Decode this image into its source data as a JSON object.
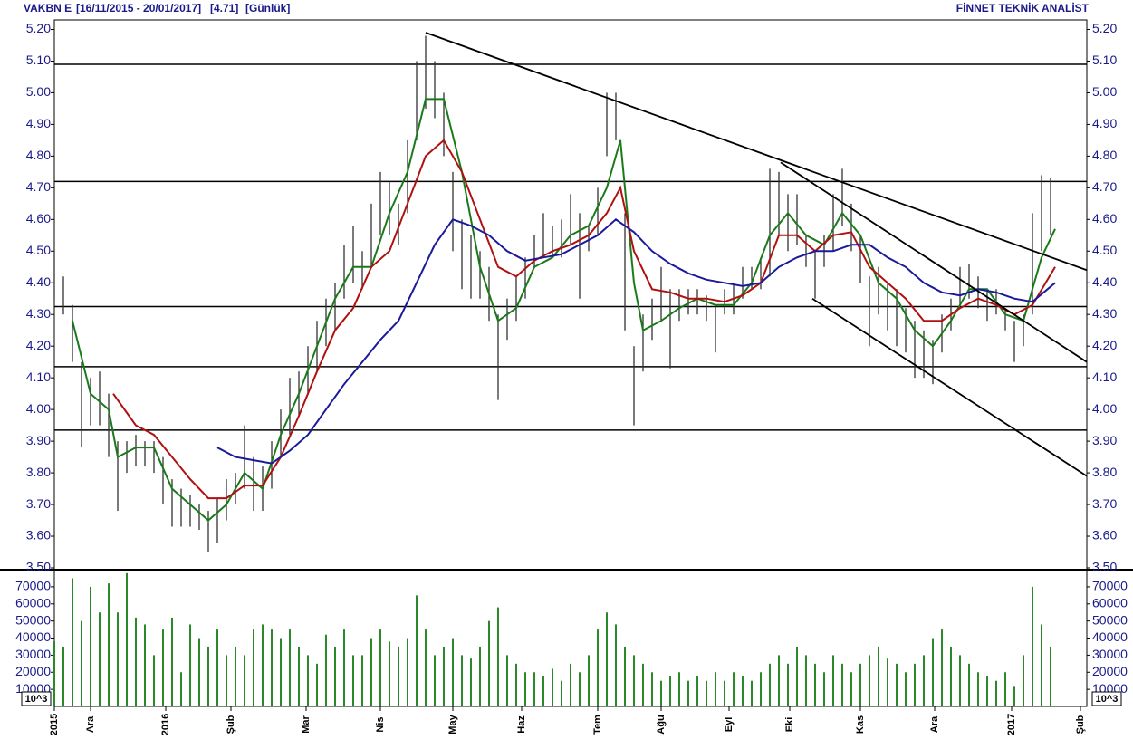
{
  "chart_data": {
    "type": "price-range",
    "title": "VAKBN E",
    "period": "[16/11/2015 - 20/01/2017]",
    "last": "[4.71]",
    "interval": "[Günlük]",
    "source": "FİNNET TEKNİK ANALİST",
    "xlim": [
      0,
      114
    ],
    "xticks": [
      {
        "value": 0,
        "label": "2015"
      },
      {
        "value": 4,
        "label": "Ara"
      },
      {
        "value": 12.3,
        "label": "2016"
      },
      {
        "value": 19.5,
        "label": "Şub"
      },
      {
        "value": 27.8,
        "label": "Mar"
      },
      {
        "value": 36,
        "label": "Nis"
      },
      {
        "value": 44,
        "label": "May"
      },
      {
        "value": 51.6,
        "label": "Haz"
      },
      {
        "value": 60,
        "label": "Tem"
      },
      {
        "value": 67,
        "label": "Ağu"
      },
      {
        "value": 74.5,
        "label": "Eyl"
      },
      {
        "value": 81.2,
        "label": "Eki"
      },
      {
        "value": 89,
        "label": "Kas"
      },
      {
        "value": 97.2,
        "label": "Ara"
      },
      {
        "value": 105.7,
        "label": "2017"
      },
      {
        "value": 113.3,
        "label": "Şub"
      }
    ],
    "ylim": [
      3.5,
      5.23
    ],
    "yticks": [
      {
        "value": 3.5,
        "label": "3.50"
      },
      {
        "value": 3.6,
        "label": "3.60"
      },
      {
        "value": 3.7,
        "label": "3.70"
      },
      {
        "value": 3.8,
        "label": "3.80"
      },
      {
        "value": 3.9,
        "label": "3.90"
      },
      {
        "value": 4.0,
        "label": "4.00"
      },
      {
        "value": 4.1,
        "label": "4.10"
      },
      {
        "value": 4.2,
        "label": "4.20"
      },
      {
        "value": 4.3,
        "label": "4.30"
      },
      {
        "value": 4.4,
        "label": "4.40"
      },
      {
        "value": 4.5,
        "label": "4.50"
      },
      {
        "value": 4.6,
        "label": "4.60"
      },
      {
        "value": 4.7,
        "label": "4.70"
      },
      {
        "value": 4.8,
        "label": "4.80"
      },
      {
        "value": 4.9,
        "label": "4.90"
      },
      {
        "value": 5.0,
        "label": "5.00"
      },
      {
        "value": 5.1,
        "label": "5.10"
      },
      {
        "value": 5.2,
        "label": "5.20"
      }
    ],
    "bar_color": "#333333",
    "x": [
      0,
      1,
      2,
      3,
      4,
      5,
      6,
      7,
      8,
      9,
      10,
      11,
      12,
      13,
      14,
      15,
      16,
      17,
      18,
      19,
      20,
      21,
      22,
      23,
      24,
      25,
      26,
      27,
      28,
      29,
      30,
      31,
      32,
      33,
      34,
      35,
      36,
      37,
      38,
      39,
      40,
      41,
      42,
      43,
      44,
      45,
      46,
      47,
      48,
      49,
      50,
      51,
      52,
      53,
      54,
      55,
      56,
      57,
      58,
      59,
      60,
      61,
      62,
      63,
      64,
      65,
      66,
      67,
      68,
      69,
      70,
      71,
      72,
      73,
      74,
      75,
      76,
      77,
      78,
      79,
      80,
      81,
      82,
      83,
      84,
      85,
      86,
      87,
      88,
      89,
      90,
      91,
      92,
      93,
      94,
      95,
      96,
      97,
      98,
      99,
      100,
      101,
      102,
      103,
      104,
      105,
      106,
      107,
      108,
      109,
      110
    ],
    "high": [
      4.5,
      4.42,
      4.33,
      4.15,
      4.1,
      4.12,
      4.05,
      3.9,
      3.9,
      3.92,
      3.9,
      3.9,
      3.85,
      3.78,
      3.75,
      3.73,
      3.7,
      3.68,
      3.72,
      3.78,
      3.8,
      3.95,
      3.85,
      3.82,
      3.9,
      4.0,
      4.1,
      4.12,
      4.2,
      4.28,
      4.35,
      4.4,
      4.52,
      4.58,
      4.5,
      4.65,
      4.75,
      4.72,
      4.65,
      4.85,
      5.1,
      5.18,
      5.1,
      5.0,
      4.75,
      4.6,
      4.55,
      4.5,
      4.45,
      4.3,
      4.35,
      4.42,
      4.48,
      4.55,
      4.62,
      4.58,
      4.6,
      4.68,
      4.62,
      4.58,
      4.7,
      5.0,
      5.0,
      4.62,
      4.2,
      4.3,
      4.35,
      4.45,
      4.38,
      4.38,
      4.38,
      4.38,
      4.36,
      4.33,
      4.38,
      4.4,
      4.45,
      4.45,
      4.48,
      4.76,
      4.75,
      4.68,
      4.68,
      4.55,
      4.5,
      4.55,
      4.68,
      4.76,
      4.65,
      4.55,
      4.42,
      4.45,
      4.4,
      4.38,
      4.32,
      4.28,
      4.25,
      4.22,
      4.3,
      4.35,
      4.45,
      4.46,
      4.42,
      4.38,
      4.38,
      4.32,
      4.28,
      4.3,
      4.62,
      4.74,
      4.73
    ],
    "low": [
      4.35,
      4.3,
      4.15,
      3.88,
      3.95,
      3.95,
      3.85,
      3.68,
      3.8,
      3.82,
      3.82,
      3.8,
      3.7,
      3.63,
      3.63,
      3.63,
      3.62,
      3.55,
      3.58,
      3.65,
      3.7,
      3.75,
      3.68,
      3.68,
      3.75,
      3.85,
      3.92,
      3.98,
      4.05,
      4.12,
      4.2,
      4.25,
      4.35,
      4.4,
      4.38,
      4.45,
      4.55,
      4.55,
      4.52,
      4.62,
      4.85,
      4.95,
      4.92,
      4.8,
      4.5,
      4.38,
      4.35,
      4.35,
      4.28,
      4.03,
      4.22,
      4.28,
      4.35,
      4.45,
      4.48,
      4.48,
      4.48,
      4.52,
      4.35,
      4.5,
      4.55,
      4.8,
      4.85,
      4.25,
      3.95,
      4.12,
      4.22,
      4.28,
      4.13,
      4.28,
      4.3,
      4.3,
      4.28,
      4.18,
      4.3,
      4.3,
      4.35,
      4.38,
      4.38,
      4.42,
      4.55,
      4.5,
      4.52,
      4.45,
      4.35,
      4.45,
      4.5,
      4.58,
      4.5,
      4.4,
      4.2,
      4.3,
      4.25,
      4.2,
      4.18,
      4.1,
      4.1,
      4.08,
      4.18,
      4.25,
      4.33,
      4.35,
      4.32,
      4.28,
      4.3,
      4.25,
      4.15,
      4.2,
      4.3,
      4.5,
      4.55
    ],
    "series": [
      {
        "color": "#1a7a1a",
        "x": [
          2,
          4,
          6,
          7,
          9,
          11,
          13,
          15,
          17,
          19,
          21,
          23,
          25,
          27,
          29,
          31,
          33,
          35,
          37,
          39,
          41,
          43,
          45,
          47,
          49,
          51,
          53,
          55,
          57,
          59,
          61,
          62.5,
          64,
          65,
          67,
          69,
          71,
          73,
          75,
          77,
          79,
          81,
          83,
          85,
          87,
          89,
          91,
          93,
          95,
          97,
          99,
          101,
          103,
          105,
          107,
          109,
          110.5
        ],
        "values": [
          4.28,
          4.05,
          4.0,
          3.85,
          3.88,
          3.88,
          3.75,
          3.7,
          3.65,
          3.7,
          3.8,
          3.75,
          3.92,
          4.05,
          4.2,
          4.35,
          4.45,
          4.45,
          4.62,
          4.75,
          4.98,
          4.98,
          4.75,
          4.45,
          4.28,
          4.32,
          4.45,
          4.48,
          4.55,
          4.58,
          4.7,
          4.85,
          4.4,
          4.25,
          4.28,
          4.32,
          4.35,
          4.33,
          4.33,
          4.4,
          4.55,
          4.62,
          4.55,
          4.52,
          4.62,
          4.55,
          4.4,
          4.35,
          4.25,
          4.2,
          4.28,
          4.38,
          4.38,
          4.3,
          4.28,
          4.48,
          4.57
        ]
      },
      {
        "color": "#b01010",
        "x": [
          6.5,
          9,
          11,
          13,
          15,
          17,
          19,
          21,
          23,
          25,
          27,
          29,
          31,
          33,
          35,
          37,
          39,
          41,
          43,
          45,
          47,
          49,
          51,
          53,
          55,
          57,
          59,
          61,
          62.5,
          64,
          66,
          68,
          70,
          72,
          74,
          76,
          78,
          80,
          82,
          84,
          86,
          88,
          90,
          92,
          94,
          96,
          98,
          100,
          102,
          104,
          106,
          108,
          110.5
        ],
        "values": [
          4.05,
          3.95,
          3.92,
          3.85,
          3.78,
          3.72,
          3.72,
          3.76,
          3.76,
          3.85,
          3.98,
          4.12,
          4.25,
          4.32,
          4.45,
          4.5,
          4.65,
          4.8,
          4.85,
          4.75,
          4.6,
          4.45,
          4.42,
          4.47,
          4.5,
          4.52,
          4.55,
          4.62,
          4.7,
          4.5,
          4.38,
          4.37,
          4.35,
          4.35,
          4.34,
          4.36,
          4.4,
          4.55,
          4.55,
          4.5,
          4.55,
          4.56,
          4.45,
          4.4,
          4.35,
          4.28,
          4.28,
          4.32,
          4.35,
          4.33,
          4.3,
          4.33,
          4.45
        ]
      },
      {
        "color": "#1a1a9a",
        "x": [
          18,
          20,
          22,
          24,
          26,
          28,
          30,
          32,
          34,
          36,
          38,
          40,
          42,
          44,
          46,
          48,
          50,
          52,
          54,
          56,
          58,
          60,
          62,
          64,
          66,
          68,
          70,
          72,
          74,
          76,
          78,
          80,
          82,
          84,
          86,
          88,
          90,
          92,
          94,
          96,
          98,
          100,
          102,
          104,
          106,
          108,
          110.5
        ],
        "values": [
          3.88,
          3.85,
          3.84,
          3.83,
          3.87,
          3.92,
          4.0,
          4.08,
          4.15,
          4.22,
          4.28,
          4.4,
          4.52,
          4.6,
          4.58,
          4.55,
          4.5,
          4.47,
          4.48,
          4.49,
          4.52,
          4.55,
          4.6,
          4.56,
          4.5,
          4.46,
          4.43,
          4.41,
          4.4,
          4.39,
          4.4,
          4.45,
          4.48,
          4.5,
          4.5,
          4.52,
          4.52,
          4.48,
          4.45,
          4.4,
          4.37,
          4.36,
          4.38,
          4.37,
          4.35,
          4.34,
          4.4
        ]
      }
    ],
    "hlines": [
      5.09,
      4.72,
      4.325,
      4.135,
      3.935
    ],
    "trendlines": [
      {
        "x": [
          41,
          114
        ],
        "y": [
          5.19,
          4.44
        ]
      },
      {
        "x": [
          80.2,
          114
        ],
        "y": [
          4.78,
          4.15
        ]
      },
      {
        "x": [
          83.7,
          114
        ],
        "y": [
          4.35,
          3.79
        ]
      }
    ],
    "volume": {
      "color": "#2a8a2a",
      "unit_label": "10^3",
      "ylim": [
        0,
        79500
      ],
      "yticks": [
        10000,
        20000,
        30000,
        40000,
        50000,
        60000,
        70000
      ],
      "values": [
        38000,
        35000,
        75000,
        50000,
        70000,
        55000,
        72000,
        55000,
        78000,
        52000,
        48000,
        30000,
        45000,
        52000,
        20000,
        48000,
        40000,
        35000,
        45000,
        30000,
        35000,
        30000,
        45000,
        48000,
        45000,
        40000,
        45000,
        35000,
        30000,
        25000,
        42000,
        35000,
        45000,
        30000,
        30000,
        40000,
        45000,
        38000,
        35000,
        40000,
        65000,
        45000,
        30000,
        35000,
        40000,
        30000,
        28000,
        35000,
        50000,
        58000,
        30000,
        25000,
        20000,
        20000,
        18000,
        22000,
        15000,
        25000,
        20000,
        30000,
        45000,
        55000,
        48000,
        35000,
        30000,
        25000,
        20000,
        15000,
        18000,
        20000,
        15000,
        18000,
        15000,
        20000,
        15000,
        20000,
        18000,
        15000,
        20000,
        25000,
        30000,
        25000,
        35000,
        30000,
        25000,
        20000,
        30000,
        25000,
        20000,
        25000,
        30000,
        35000,
        28000,
        25000,
        20000,
        25000,
        30000,
        40000,
        45000,
        35000,
        30000,
        25000,
        20000,
        18000,
        15000,
        20000,
        12000,
        30000,
        70000,
        48000,
        35000
      ]
    }
  }
}
